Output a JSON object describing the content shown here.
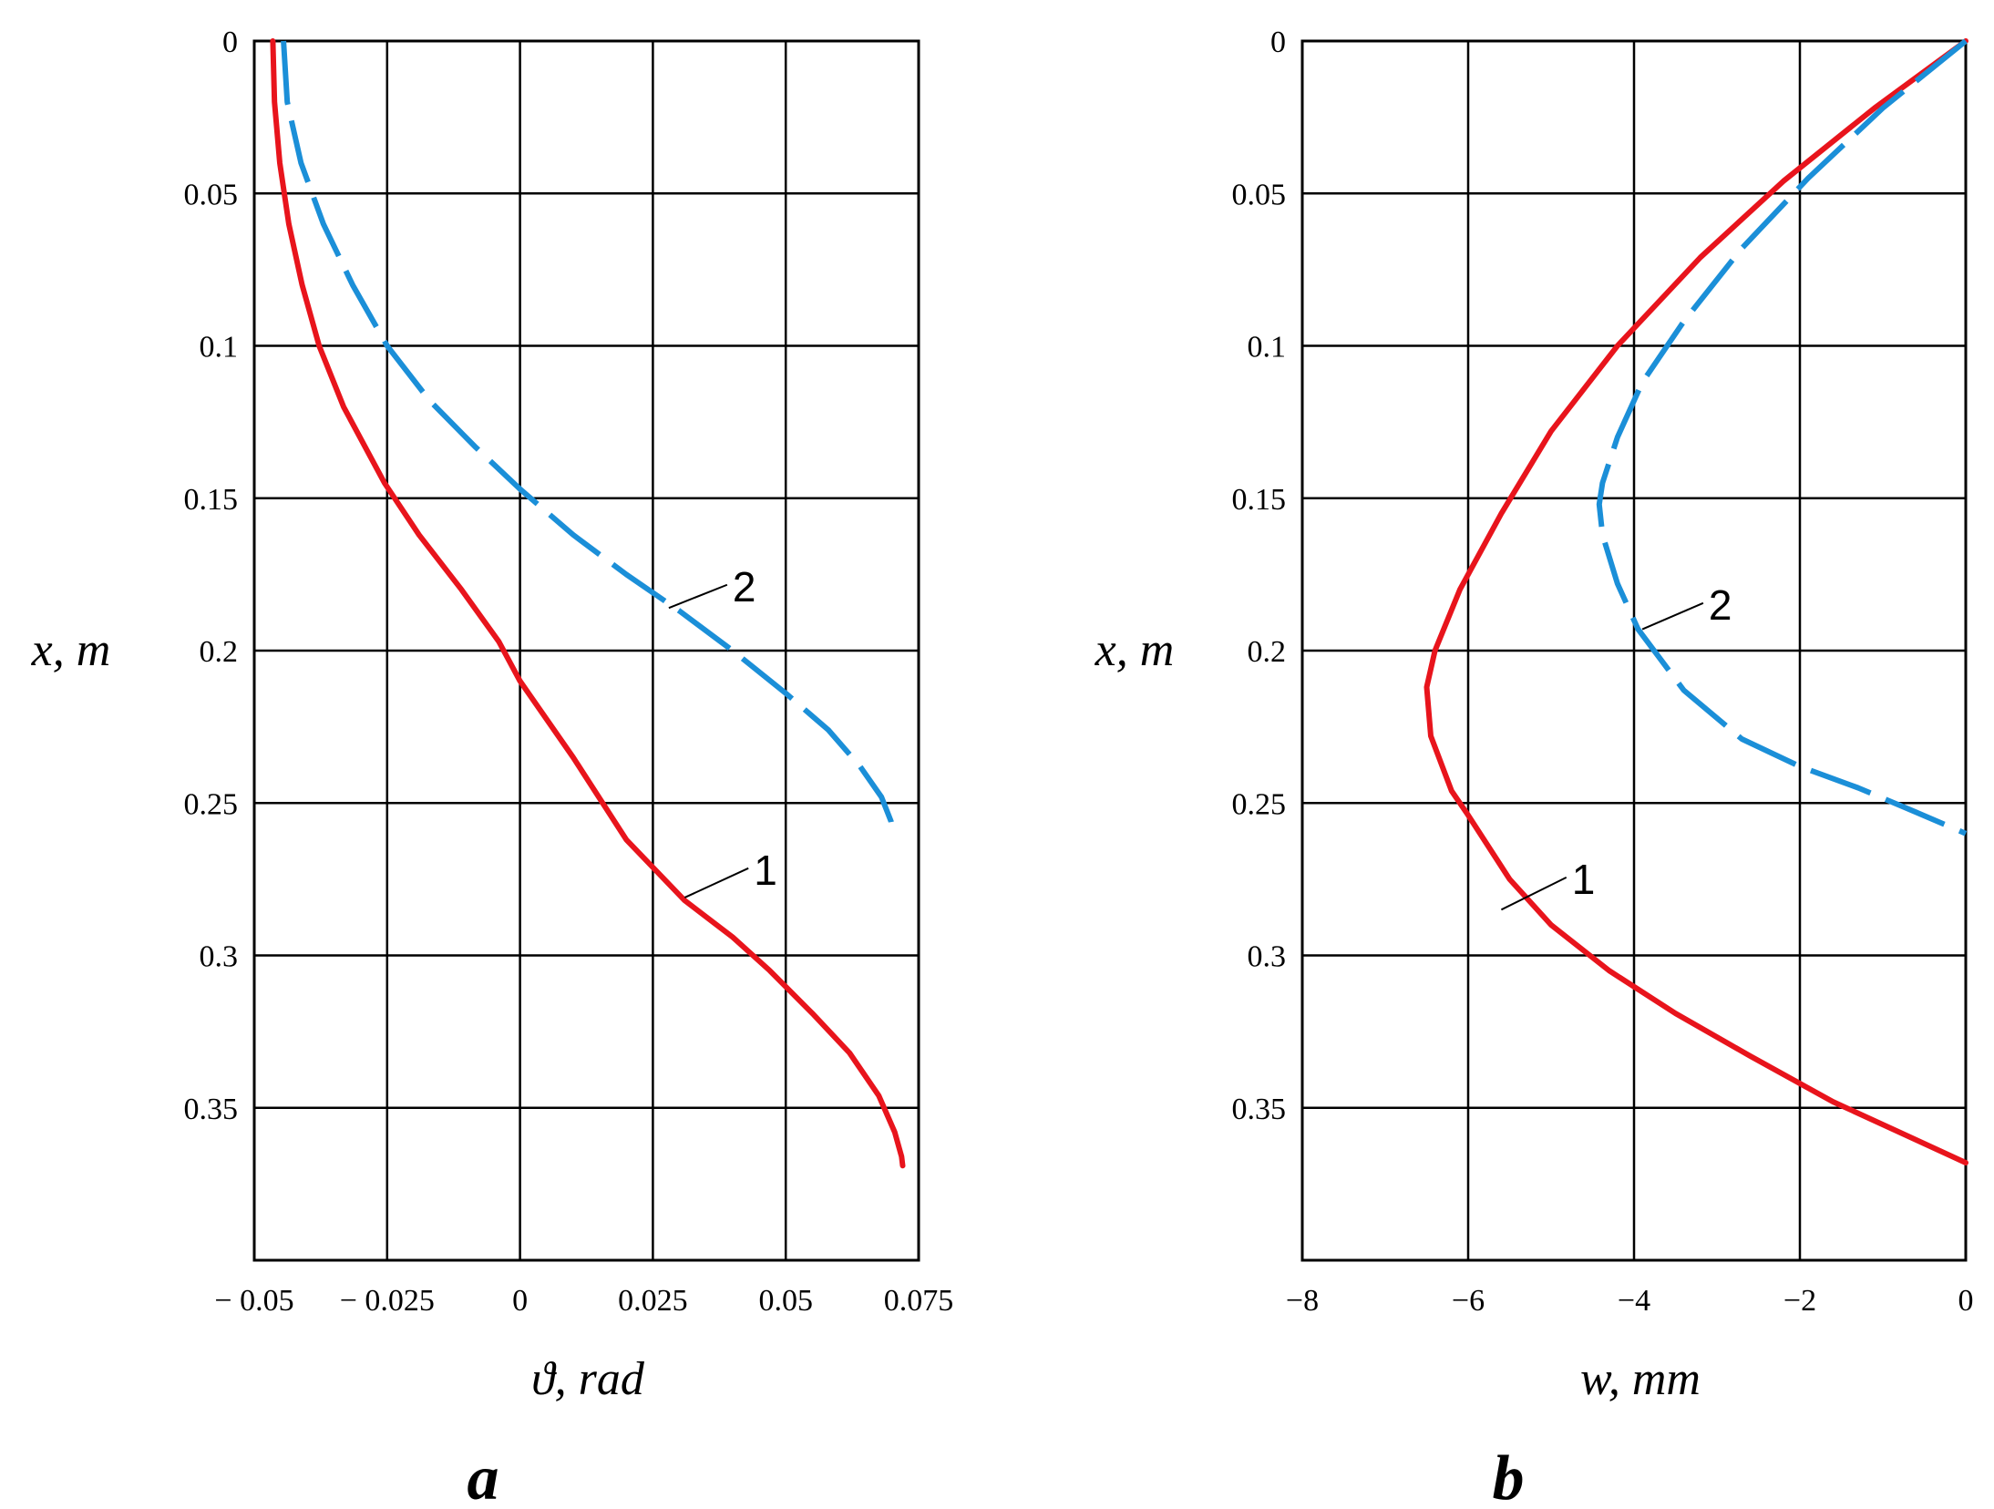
{
  "colors": {
    "series1": "#e8141c",
    "series2": "#1b8fd8",
    "grid": "#000000"
  },
  "chart_data": [
    {
      "type": "line",
      "panel_label": "a",
      "xlabel": "ϑ, rad",
      "ylabel": "x, m",
      "xlim": [
        -0.05,
        0.075
      ],
      "ylim": [
        0,
        0.4
      ],
      "y_inverted": true,
      "grid": true,
      "x_ticks": [
        -0.05,
        -0.025,
        0,
        0.025,
        0.05,
        0.075
      ],
      "x_tick_labels": [
        "− 0.05",
        "− 0.025",
        "0",
        "0.025",
        "0.05",
        "0.075"
      ],
      "y_ticks": [
        0,
        0.05,
        0.1,
        0.15,
        0.2,
        0.25,
        0.3,
        0.35
      ],
      "y_tick_labels": [
        "0",
        "0.05",
        "0.1",
        "0.15",
        "0.2",
        "0.25",
        "0.3",
        "0.35"
      ],
      "series": [
        {
          "name": "1",
          "style": "solid",
          "points": [
            [
              -0.0465,
              0
            ],
            [
              -0.0462,
              0.02
            ],
            [
              -0.0452,
              0.04
            ],
            [
              -0.0435,
              0.06
            ],
            [
              -0.041,
              0.08
            ],
            [
              -0.0378,
              0.1
            ],
            [
              -0.0332,
              0.12
            ],
            [
              -0.0255,
              0.145
            ],
            [
              -0.019,
              0.162
            ],
            [
              -0.011,
              0.18
            ],
            [
              -0.004,
              0.197
            ],
            [
              0,
              0.21
            ],
            [
              0.01,
              0.235
            ],
            [
              0.02,
              0.262
            ],
            [
              0.031,
              0.282
            ],
            [
              0.04,
              0.294
            ],
            [
              0.047,
              0.305
            ],
            [
              0.055,
              0.319
            ],
            [
              0.062,
              0.332
            ],
            [
              0.0675,
              0.346
            ],
            [
              0.0705,
              0.358
            ],
            [
              0.0718,
              0.366
            ],
            [
              0.072,
              0.369
            ]
          ],
          "label_text": "1",
          "label_at": [
            0.044,
            0.272
          ],
          "leader_to": [
            0.031,
            0.281
          ]
        },
        {
          "name": "2",
          "style": "dashed",
          "points": [
            [
              -0.0445,
              0
            ],
            [
              -0.0438,
              0.02
            ],
            [
              -0.0412,
              0.04
            ],
            [
              -0.037,
              0.06
            ],
            [
              -0.0315,
              0.08
            ],
            [
              -0.025,
              0.1
            ],
            [
              -0.017,
              0.118
            ],
            [
              -0.0085,
              0.133
            ],
            [
              0,
              0.147
            ],
            [
              0.01,
              0.162
            ],
            [
              0.02,
              0.175
            ],
            [
              0.03,
              0.187
            ],
            [
              0.04,
              0.2
            ],
            [
              0.05,
              0.214
            ],
            [
              0.058,
              0.226
            ],
            [
              0.064,
              0.238
            ],
            [
              0.068,
              0.248
            ],
            [
              0.0698,
              0.256
            ],
            [
              0.0702,
              0.26
            ]
          ],
          "label_text": "2",
          "label_at": [
            0.04,
            0.179
          ],
          "leader_to": [
            0.028,
            0.186
          ]
        }
      ]
    },
    {
      "type": "line",
      "panel_label": "b",
      "xlabel": "w, mm",
      "ylabel": "x, m",
      "xlim": [
        -8,
        0
      ],
      "ylim": [
        0,
        0.4
      ],
      "y_inverted": true,
      "grid": true,
      "x_ticks": [
        -8,
        -6,
        -4,
        -2,
        0
      ],
      "x_tick_labels": [
        "−8",
        "−6",
        "−4",
        "−2",
        "0"
      ],
      "y_ticks": [
        0,
        0.05,
        0.1,
        0.15,
        0.2,
        0.25,
        0.3,
        0.35
      ],
      "y_tick_labels": [
        "0",
        "0.05",
        "0.1",
        "0.15",
        "0.2",
        "0.25",
        "0.3",
        "0.35"
      ],
      "series": [
        {
          "name": "1",
          "style": "solid",
          "points": [
            [
              0,
              0
            ],
            [
              -1.1,
              0.022
            ],
            [
              -2.2,
              0.046
            ],
            [
              -3.2,
              0.071
            ],
            [
              -4.2,
              0.1
            ],
            [
              -5.0,
              0.128
            ],
            [
              -5.6,
              0.155
            ],
            [
              -6.1,
              0.18
            ],
            [
              -6.4,
              0.2
            ],
            [
              -6.5,
              0.212
            ],
            [
              -6.45,
              0.228
            ],
            [
              -6.2,
              0.246
            ],
            [
              -6.0,
              0.254
            ],
            [
              -5.5,
              0.275
            ],
            [
              -5.0,
              0.29
            ],
            [
              -4.3,
              0.305
            ],
            [
              -3.5,
              0.319
            ],
            [
              -2.6,
              0.333
            ],
            [
              -1.6,
              0.348
            ],
            [
              -0.8,
              0.358
            ],
            [
              0,
              0.368
            ]
          ],
          "label_text": "1",
          "label_at": [
            -4.75,
            0.275
          ],
          "leader_to": [
            -5.6,
            0.285
          ]
        },
        {
          "name": "2",
          "style": "dashed",
          "points": [
            [
              0,
              0
            ],
            [
              -1.0,
              0.022
            ],
            [
              -1.9,
              0.045
            ],
            [
              -2.7,
              0.068
            ],
            [
              -3.4,
              0.092
            ],
            [
              -3.9,
              0.112
            ],
            [
              -4.2,
              0.13
            ],
            [
              -4.38,
              0.145
            ],
            [
              -4.42,
              0.152
            ],
            [
              -4.38,
              0.162
            ],
            [
              -4.2,
              0.178
            ],
            [
              -3.95,
              0.193
            ],
            [
              -3.4,
              0.213
            ],
            [
              -2.7,
              0.229
            ],
            [
              -2.0,
              0.238
            ],
            [
              -1.3,
              0.245
            ],
            [
              -0.6,
              0.253
            ],
            [
              0,
              0.26
            ]
          ],
          "label_text": "2",
          "label_at": [
            -3.1,
            0.185
          ],
          "leader_to": [
            -3.9,
            0.193
          ]
        }
      ]
    }
  ]
}
